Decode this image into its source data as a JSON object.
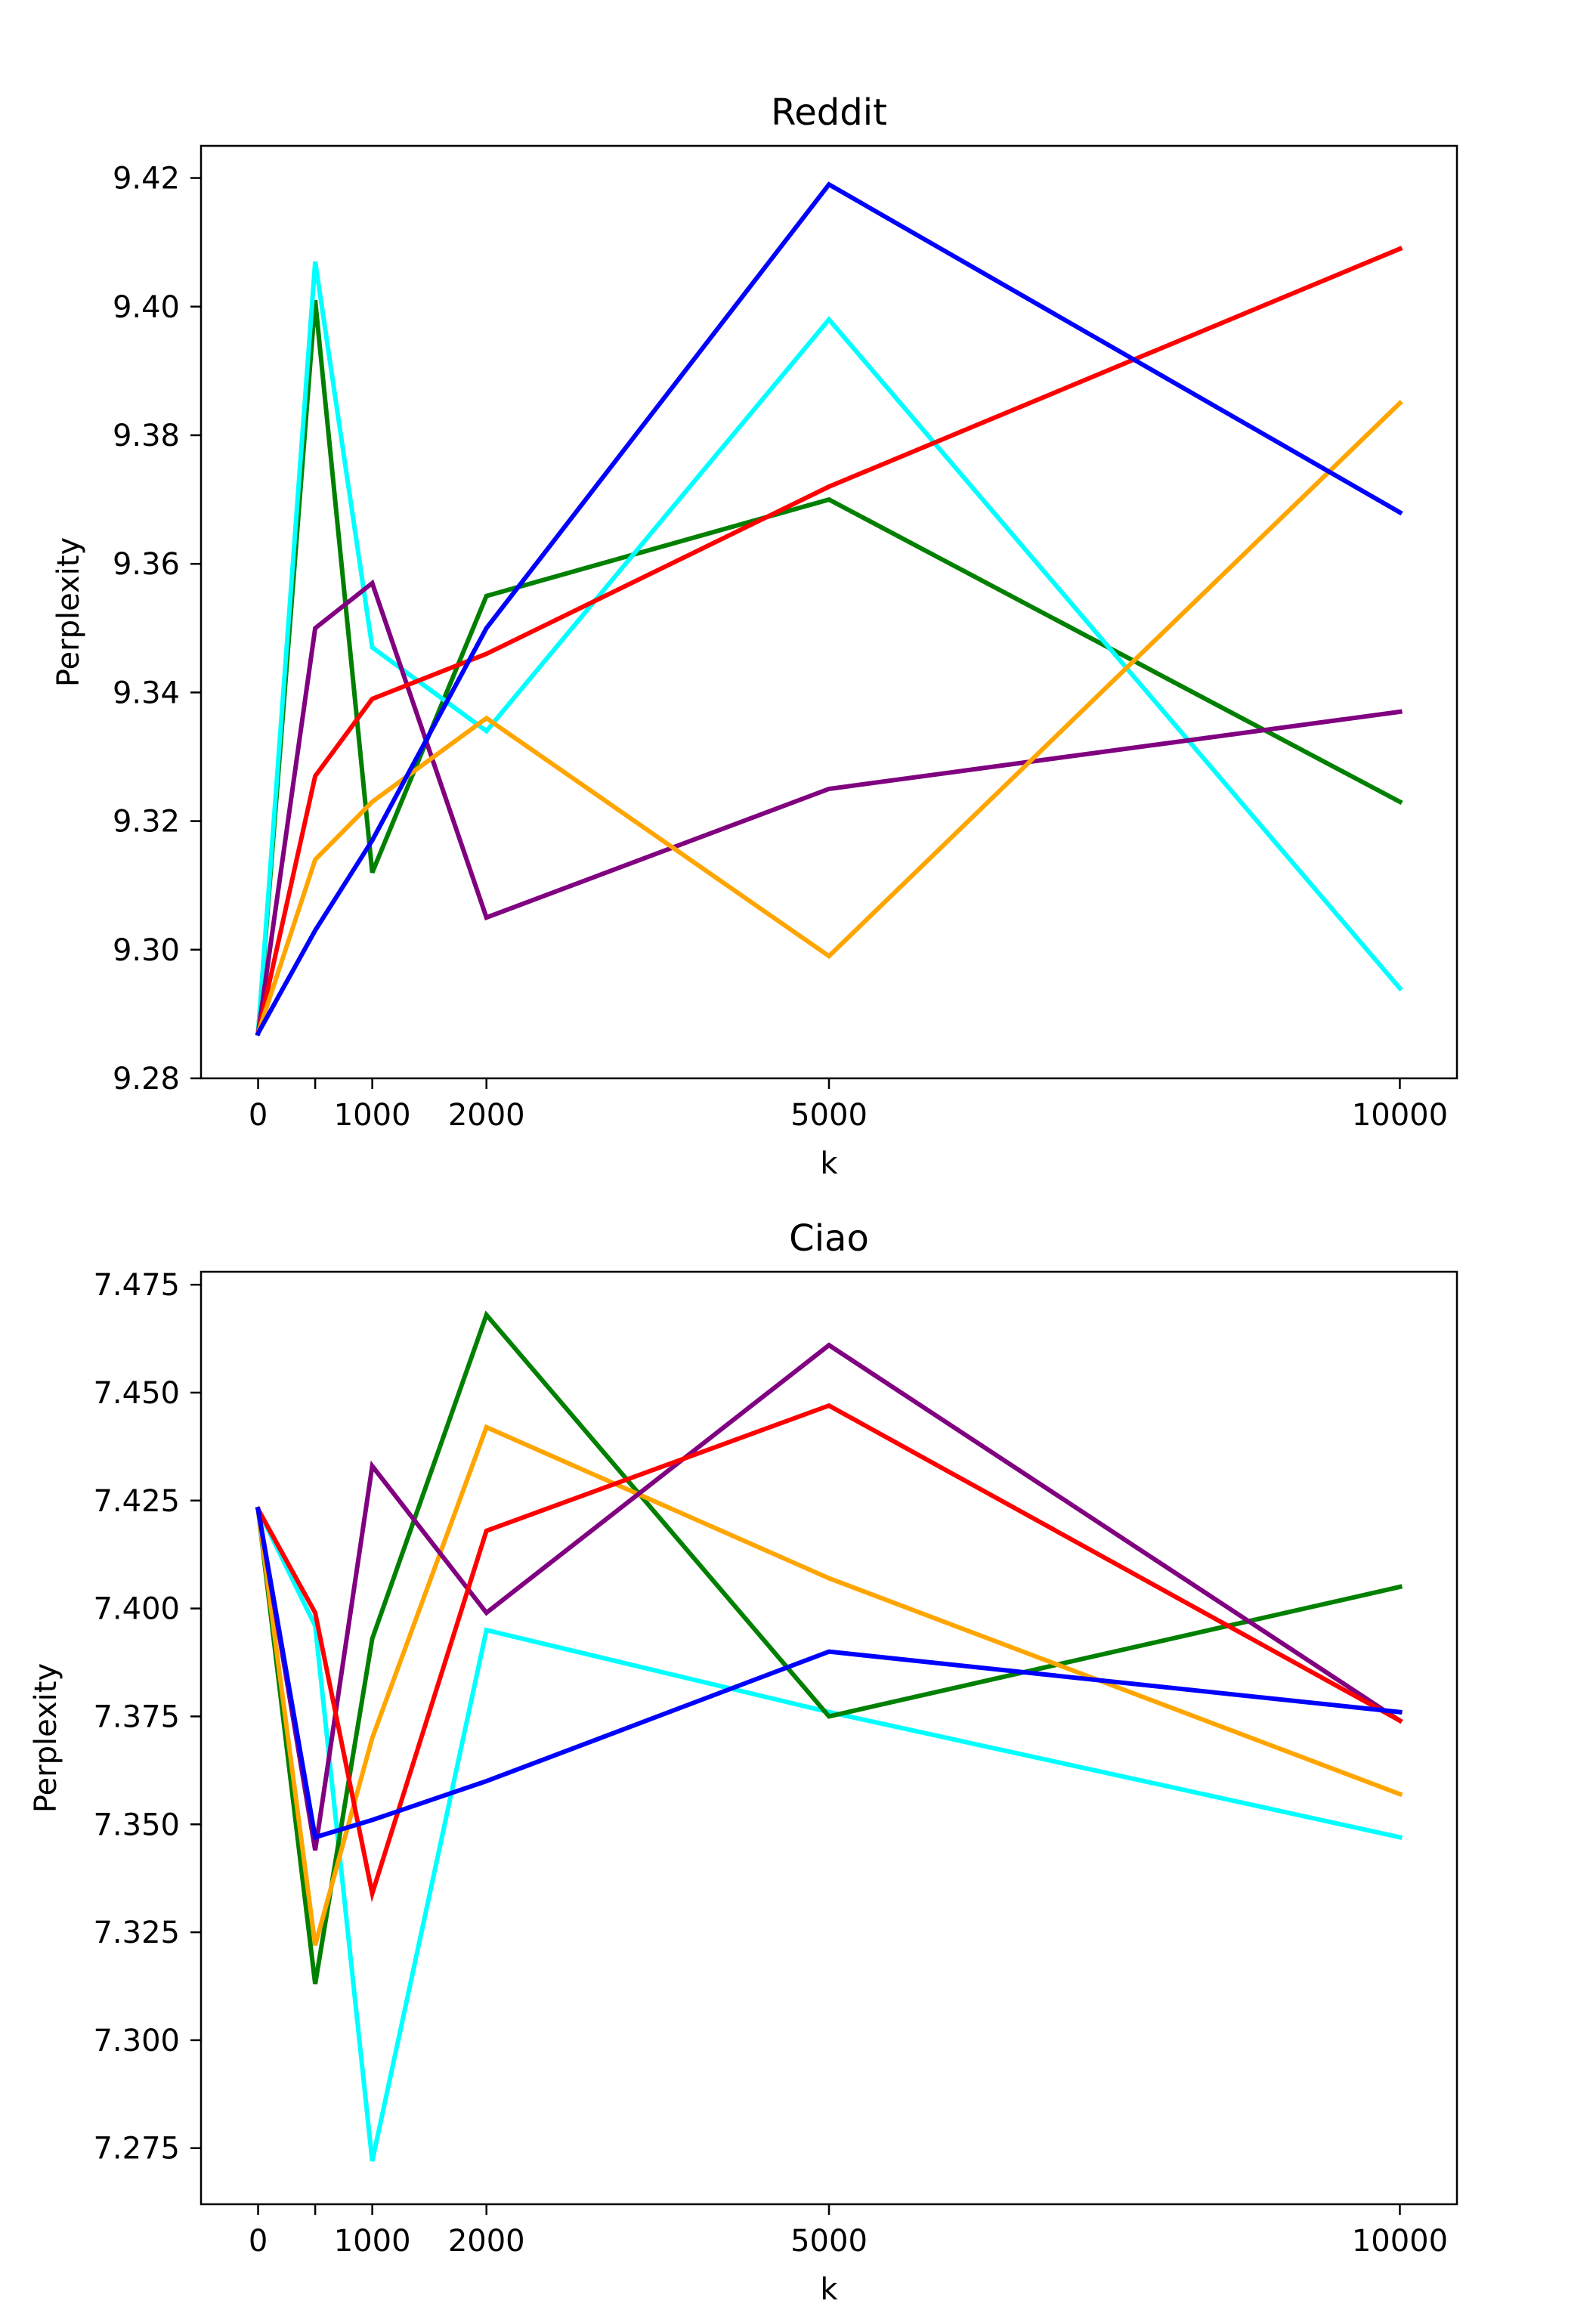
{
  "chart_data": [
    {
      "type": "line",
      "title": "Reddit",
      "xlabel": "k",
      "ylabel": "Perplexity",
      "xlim": [
        -500,
        10500
      ],
      "ylim": [
        9.28,
        9.425
      ],
      "xticks": [
        0,
        1000,
        2000,
        5000,
        10000
      ],
      "xtick_labels": [
        "0",
        "1000",
        "2000",
        "5000",
        "10000"
      ],
      "yticks": [
        9.28,
        9.3,
        9.32,
        9.34,
        9.36,
        9.38,
        9.4,
        9.42
      ],
      "ytick_labels": [
        "9.28",
        "9.30",
        "9.32",
        "9.34",
        "9.36",
        "9.38",
        "9.40",
        "9.42"
      ],
      "x": [
        0,
        500,
        1000,
        2000,
        5000,
        10000
      ],
      "series": [
        {
          "name": "green",
          "color": "#008000",
          "values": [
            9.287,
            9.401,
            9.312,
            9.355,
            9.37,
            9.323
          ]
        },
        {
          "name": "cyan",
          "color": "#00ffff",
          "values": [
            9.287,
            9.407,
            9.347,
            9.334,
            9.398,
            9.294
          ]
        },
        {
          "name": "purple",
          "color": "#800080",
          "values": [
            9.287,
            9.35,
            9.357,
            9.305,
            9.325,
            9.337
          ]
        },
        {
          "name": "red",
          "color": "#ff0000",
          "values": [
            9.287,
            9.327,
            9.339,
            9.346,
            9.372,
            9.409
          ]
        },
        {
          "name": "orange",
          "color": "#ffa500",
          "values": [
            9.287,
            9.314,
            9.323,
            9.336,
            9.299,
            9.385
          ]
        },
        {
          "name": "blue",
          "color": "#0000ff",
          "values": [
            9.287,
            9.303,
            9.317,
            9.35,
            9.419,
            9.368
          ]
        }
      ]
    },
    {
      "type": "line",
      "title": "Ciao",
      "xlabel": "k",
      "ylabel": "Perplexity",
      "xlim": [
        -500,
        10500
      ],
      "ylim": [
        7.262,
        7.478
      ],
      "xticks": [
        0,
        1000,
        2000,
        5000,
        10000
      ],
      "xtick_labels": [
        "0",
        "1000",
        "2000",
        "5000",
        "10000"
      ],
      "yticks": [
        7.275,
        7.3,
        7.325,
        7.35,
        7.375,
        7.4,
        7.425,
        7.45,
        7.475
      ],
      "ytick_labels": [
        "7.275",
        "7.300",
        "7.325",
        "7.350",
        "7.375",
        "7.400",
        "7.425",
        "7.450",
        "7.475"
      ],
      "x": [
        0,
        500,
        1000,
        2000,
        5000,
        10000
      ],
      "series": [
        {
          "name": "cyan",
          "color": "#00ffff",
          "values": [
            7.423,
            7.396,
            7.272,
            7.395,
            7.376,
            7.347
          ]
        },
        {
          "name": "green",
          "color": "#008000",
          "values": [
            7.423,
            7.313,
            7.393,
            7.468,
            7.375,
            7.405
          ]
        },
        {
          "name": "orange",
          "color": "#ffa500",
          "values": [
            7.423,
            7.322,
            7.37,
            7.442,
            7.407,
            7.357
          ]
        },
        {
          "name": "purple",
          "color": "#800080",
          "values": [
            7.423,
            7.344,
            7.433,
            7.399,
            7.461,
            7.374
          ]
        },
        {
          "name": "red",
          "color": "#ff0000",
          "values": [
            7.423,
            7.399,
            7.334,
            7.418,
            7.447,
            7.374
          ]
        },
        {
          "name": "blue",
          "color": "#0000ff",
          "values": [
            7.423,
            7.347,
            7.351,
            7.36,
            7.39,
            7.376
          ]
        }
      ]
    }
  ]
}
